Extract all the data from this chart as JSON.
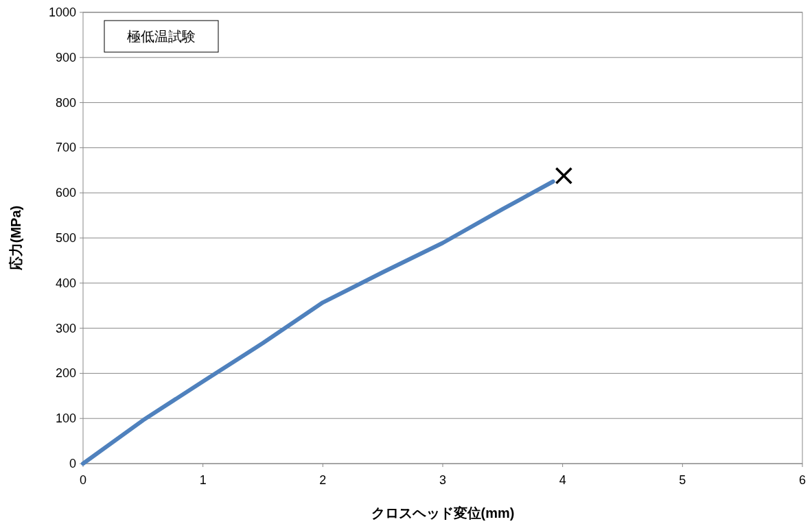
{
  "chart_data": {
    "type": "line",
    "xlabel": "クロスヘッド変位(mm)",
    "ylabel": "応力(MPa)",
    "annotations": [
      "極低温試験"
    ],
    "xlim": [
      0,
      6
    ],
    "xticks": [
      0,
      1,
      2,
      3,
      4,
      5,
      6
    ],
    "ylim": [
      0,
      1000
    ],
    "yticks": [
      0,
      100,
      200,
      300,
      400,
      500,
      600,
      700,
      800,
      900,
      1000
    ],
    "grid": "y",
    "series": [
      {
        "type": "line",
        "color": "#4f81bd",
        "marker": "none",
        "line_style": "solid",
        "x": [
          0,
          0.5,
          1,
          1.5,
          2,
          2.5,
          3,
          3.5,
          3.92
        ],
        "values": [
          0,
          96,
          182,
          267,
          357,
          424,
          489,
          564,
          625
        ]
      },
      {
        "type": "scatter",
        "color": "#000000",
        "marker": "cross",
        "x": [
          4.01
        ],
        "values": [
          638
        ]
      }
    ]
  }
}
